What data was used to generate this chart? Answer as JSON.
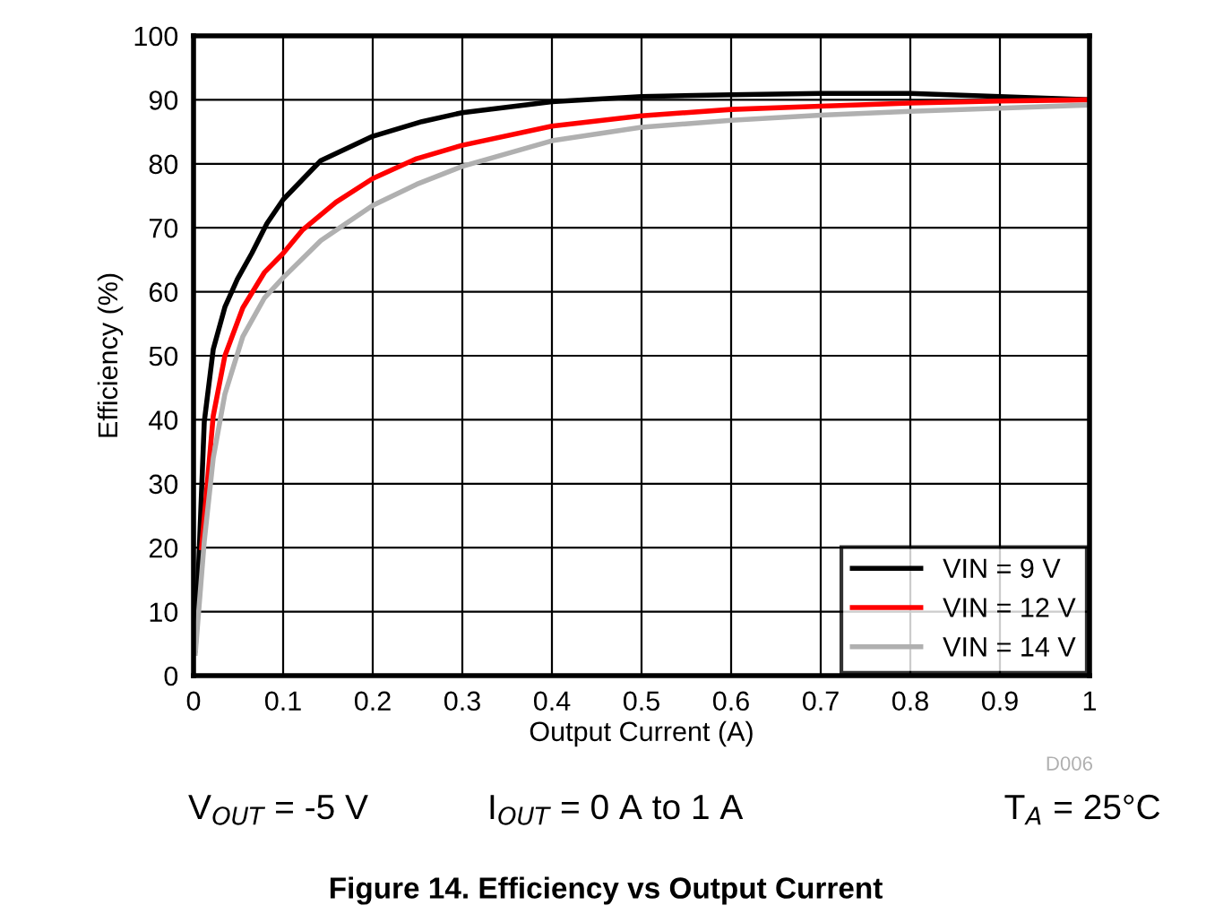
{
  "chart_data": {
    "type": "line",
    "title": "Figure 14. Efficiency vs Output Current",
    "xlabel": "Output Current (A)",
    "ylabel": "Efficiency (%)",
    "x": [
      0.002,
      0.012,
      0.022,
      0.035,
      0.049,
      0.065,
      0.082,
      0.1,
      0.142,
      0.2,
      0.255,
      0.3,
      0.4,
      0.5,
      0.6,
      0.7,
      0.8,
      0.9,
      1.0
    ],
    "series": [
      {
        "name": "VIN = 9 V",
        "color": "#000000",
        "values": [
          4,
          39.7,
          51,
          57.6,
          62,
          66,
          70.7,
          74.4,
          80.5,
          84.3,
          86.6,
          88,
          89.7,
          90.5,
          90.8,
          91,
          91,
          90.5,
          90
        ]
      },
      {
        "name": "VIN = 12 V",
        "color": "#ff0000",
        "x": [
          0.009,
          0.022,
          0.035,
          0.055,
          0.079,
          0.1,
          0.122,
          0.159,
          0.2,
          0.249,
          0.3,
          0.4,
          0.5,
          0.6,
          0.7,
          0.8,
          0.9,
          1.0
        ],
        "values": [
          20,
          40.6,
          50,
          57.5,
          63,
          66,
          69.7,
          74,
          77.7,
          80.8,
          82.9,
          85.9,
          87.5,
          88.5,
          89,
          89.5,
          89.8,
          90
        ]
      },
      {
        "name": "VIN = 14 V",
        "color": "#b0b0b0",
        "x": [
          0.002,
          0.012,
          0.022,
          0.035,
          0.055,
          0.079,
          0.1,
          0.142,
          0.2,
          0.249,
          0.3,
          0.4,
          0.5,
          0.6,
          0.7,
          0.8,
          0.9,
          1.0
        ],
        "values": [
          3.5,
          21,
          34,
          44,
          53,
          59,
          62.2,
          68,
          73.5,
          76.8,
          79.6,
          83.6,
          85.7,
          86.8,
          87.6,
          88.2,
          88.7,
          89.2
        ]
      }
    ],
    "xlim": [
      0,
      1
    ],
    "xticks": [
      0,
      0.1,
      0.2,
      0.3,
      0.4,
      0.5,
      0.6,
      0.7,
      0.8,
      0.9,
      1
    ],
    "ylim": [
      0,
      100
    ],
    "yticks": [
      0,
      10,
      20,
      30,
      40,
      50,
      60,
      70,
      80,
      90,
      100
    ],
    "grid": true,
    "legend": "bottom right",
    "annotations": [
      "D006",
      "V$_{OUT}$ = -5 V",
      "I$_{OUT}$ = 0 A to 1 A",
      "T$_{A}$ = 25°C"
    ]
  }
}
